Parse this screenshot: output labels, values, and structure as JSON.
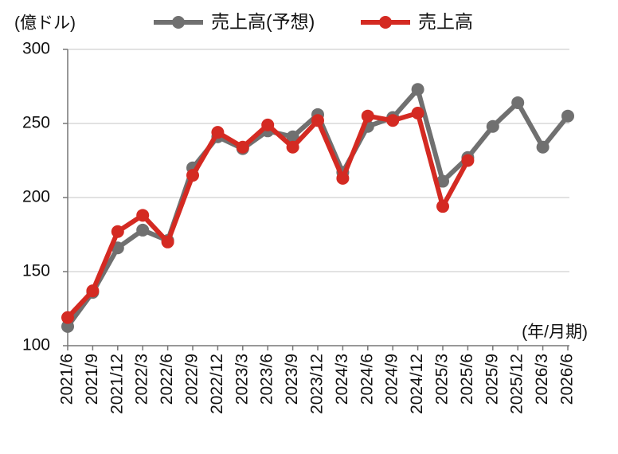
{
  "chart_data": {
    "type": "line",
    "y_label": "(億ドル)",
    "x_label": "(年/月期)",
    "categories": [
      "2021/6",
      "2021/9",
      "2021/12",
      "2022/3",
      "2022/6",
      "2022/9",
      "2022/12",
      "2023/3",
      "2023/6",
      "2023/9",
      "2023/12",
      "2024/3",
      "2024/6",
      "2024/9",
      "2024/12",
      "2025/3",
      "2025/6",
      "2025/9",
      "2025/12",
      "2026/3",
      "2026/6"
    ],
    "series": [
      {
        "name": "売上高(予想)",
        "color": "#707070",
        "values": [
          113,
          136,
          166,
          178,
          171,
          220,
          241,
          233,
          245,
          241,
          256,
          217,
          248,
          254,
          273,
          211,
          227,
          248,
          264,
          234,
          255
        ]
      },
      {
        "name": "売上高",
        "color": "#d42a22",
        "values": [
          119,
          137,
          177,
          188,
          170,
          215,
          244,
          234,
          249,
          234,
          252,
          213,
          255,
          252,
          257,
          194,
          225,
          null,
          null,
          null,
          null
        ]
      }
    ],
    "ylim": [
      100,
      300
    ],
    "yticks": [
      100,
      150,
      200,
      250,
      300
    ],
    "grid": true
  }
}
